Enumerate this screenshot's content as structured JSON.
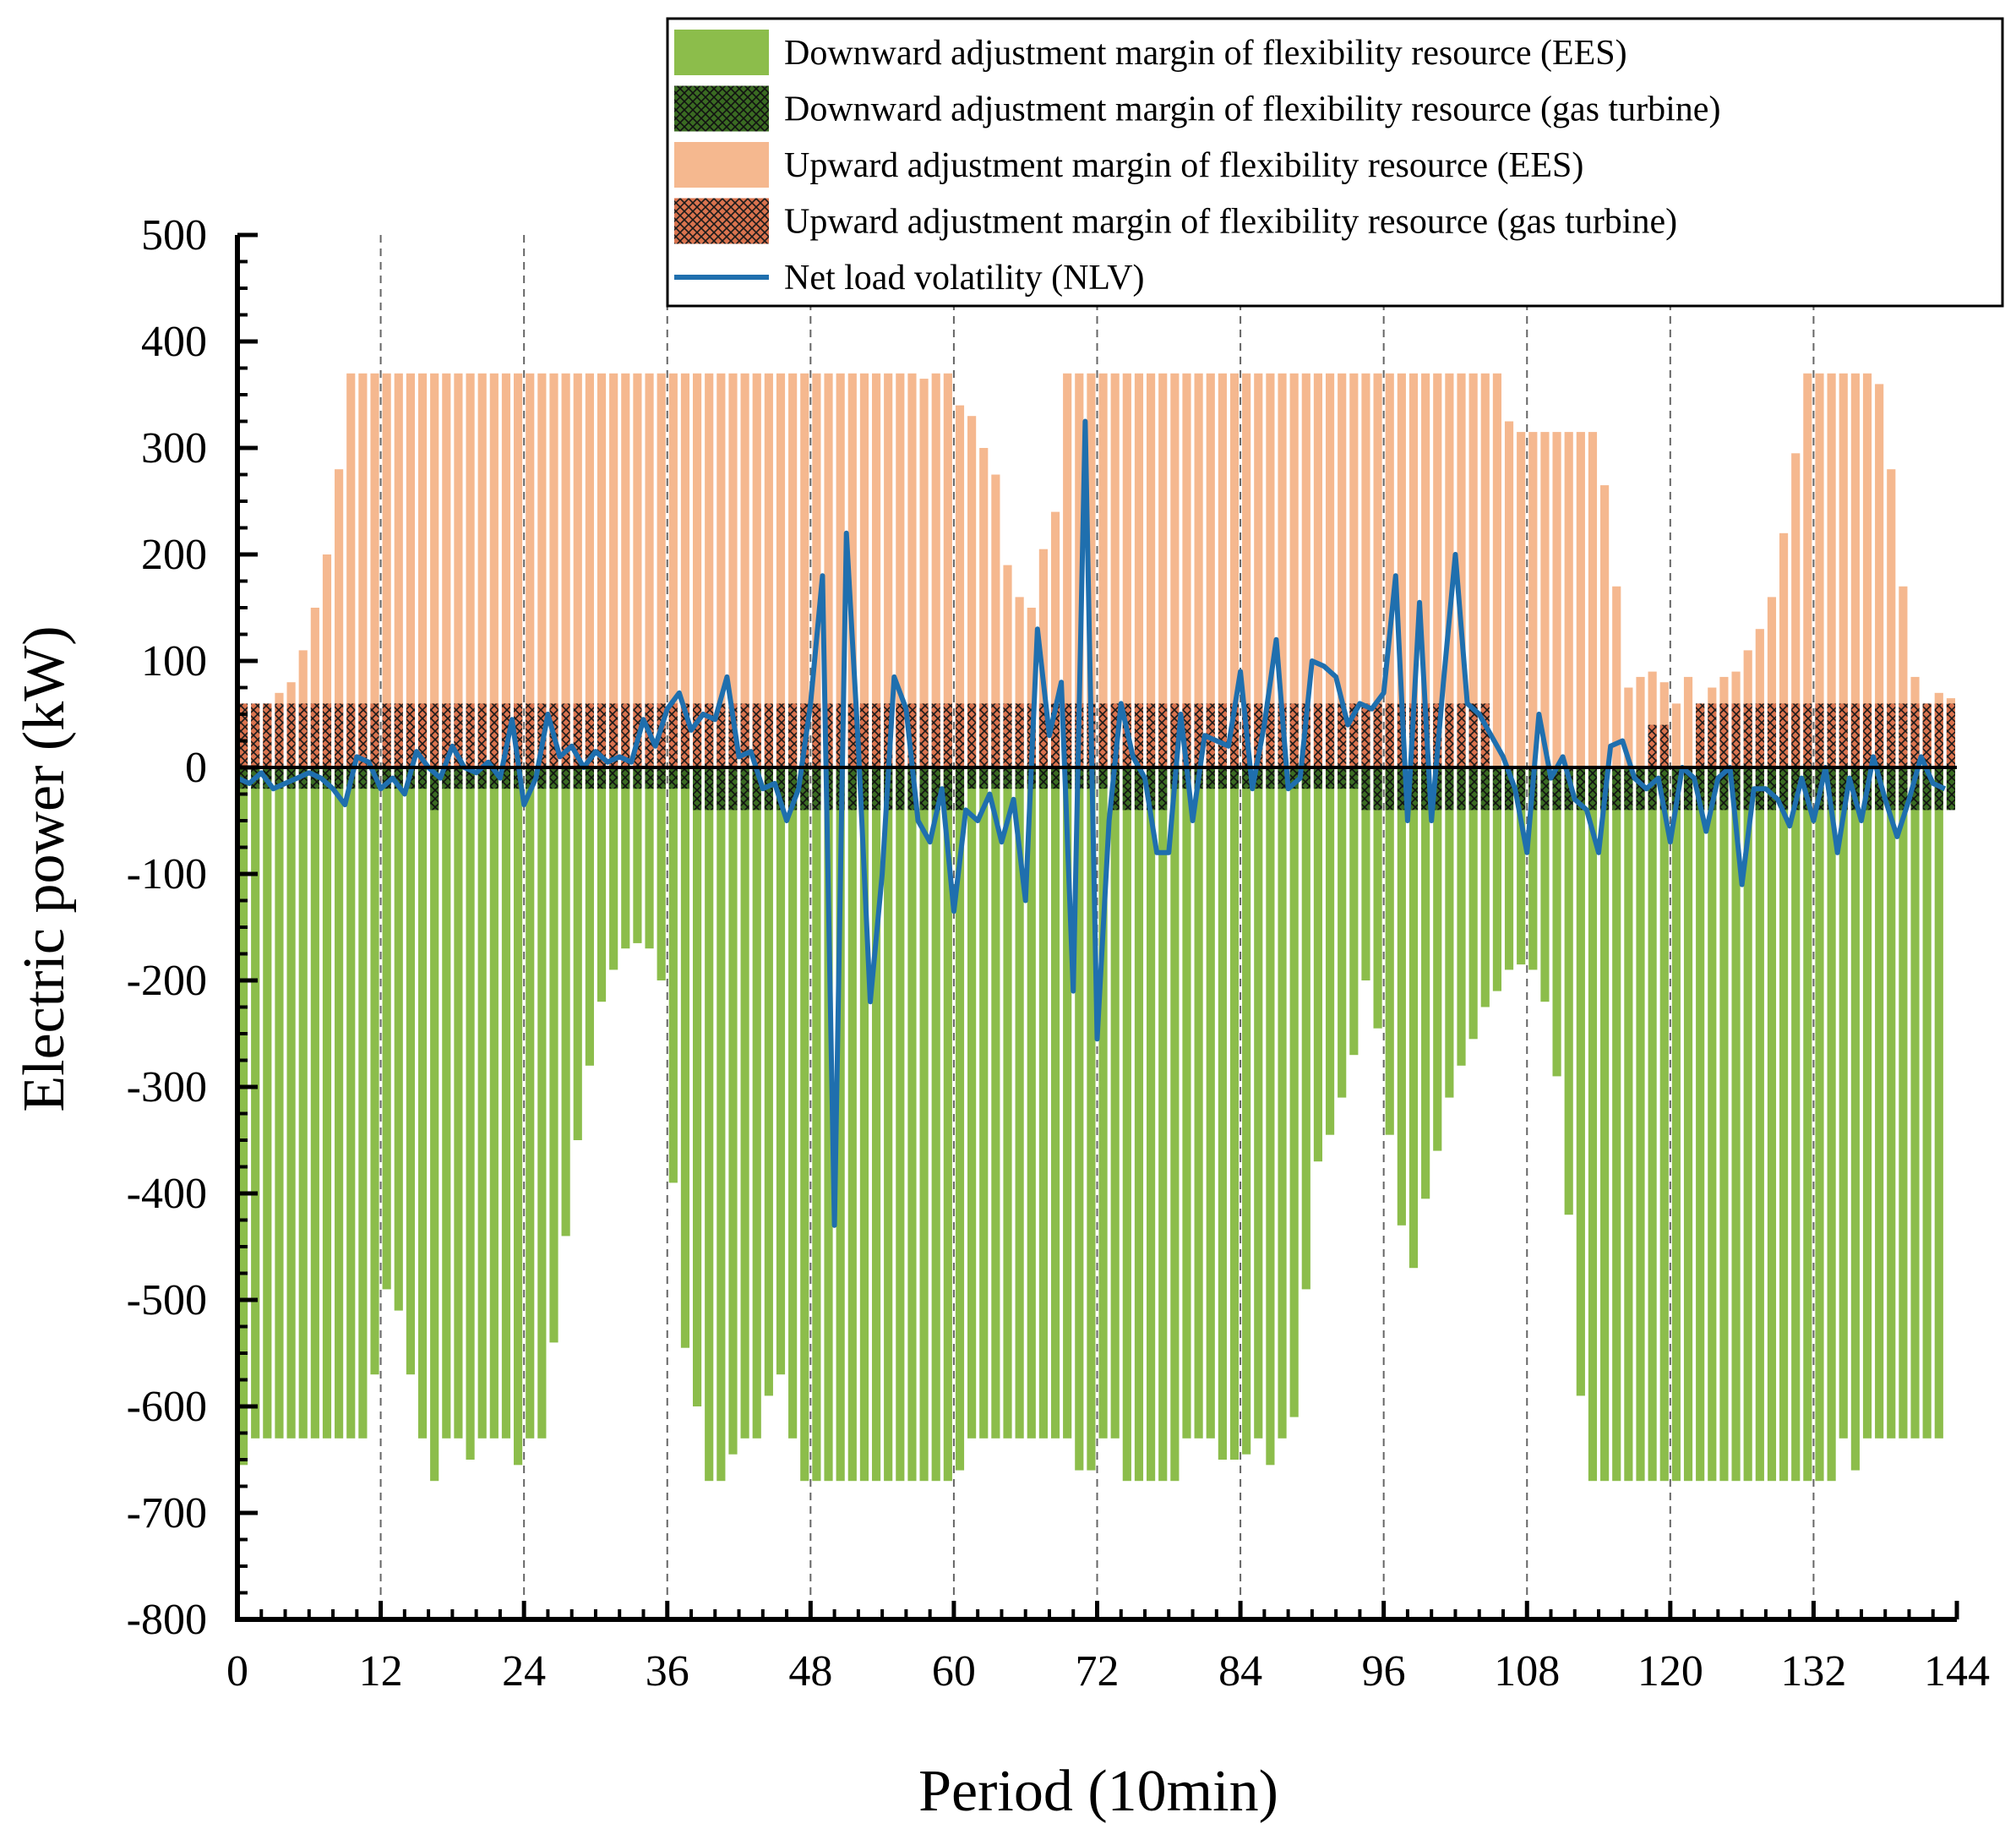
{
  "chart_data": {
    "type": "bar",
    "xlabel": "Period (10min)",
    "ylabel": "Electric power (kW)",
    "xlim": [
      0,
      144
    ],
    "ylim": [
      -800,
      500
    ],
    "x_ticks": [
      0,
      12,
      24,
      36,
      48,
      60,
      72,
      84,
      96,
      108,
      120,
      132,
      144
    ],
    "y_ticks": [
      500,
      400,
      300,
      200,
      100,
      0,
      -100,
      -200,
      -300,
      -400,
      -500,
      -600,
      -700,
      -800
    ],
    "grid": "vertical dashed lines at major x ticks",
    "legend_position": "top-right",
    "series": [
      {
        "name": "Downward adjustment margin of flexibility resource (EES)",
        "kind": "bar",
        "color": "#8cbd4b",
        "values": [
          -655,
          -630,
          -630,
          -630,
          -630,
          -630,
          -630,
          -630,
          -630,
          -630,
          -630,
          -570,
          -490,
          -510,
          -570,
          -630,
          -670,
          -630,
          -630,
          -650,
          -630,
          -630,
          -630,
          -655,
          -630,
          -630,
          -540,
          -440,
          -350,
          -280,
          -220,
          -190,
          -170,
          -165,
          -170,
          -200,
          -390,
          -545,
          -600,
          -670,
          -670,
          -645,
          -630,
          -630,
          -590,
          -570,
          -630,
          -670,
          -670,
          -670,
          -670,
          -670,
          -670,
          -670,
          -670,
          -670,
          -670,
          -670,
          -670,
          -670,
          -660,
          -630,
          -630,
          -630,
          -630,
          -630,
          -630,
          -630,
          -630,
          -630,
          -660,
          -660,
          -630,
          -630,
          -670,
          -670,
          -670,
          -670,
          -670,
          -630,
          -630,
          -630,
          -650,
          -650,
          -645,
          -630,
          -655,
          -630,
          -610,
          -490,
          -370,
          -345,
          -310,
          -270,
          -200,
          -245,
          -345,
          -430,
          -470,
          -405,
          -360,
          -310,
          -280,
          -255,
          -225,
          -210,
          -190,
          -185,
          -190,
          -220,
          -290,
          -420,
          -590,
          -670,
          -670,
          -670,
          -670,
          -670,
          -670,
          -670,
          -670,
          -670,
          -670,
          -670,
          -670,
          -670,
          -670,
          -670,
          -670,
          -670,
          -670,
          -670,
          -670,
          -670,
          -630,
          -660,
          -630,
          -630,
          -630,
          -630,
          -630,
          -630,
          -630
        ]
      },
      {
        "name": "Downward adjustment margin of flexibility resource (gas turbine)",
        "kind": "bar",
        "color": "#3a6b22",
        "pattern": "crosshatch",
        "values": [
          -20,
          -20,
          -20,
          -20,
          -20,
          -20,
          -20,
          -20,
          -20,
          -20,
          -20,
          -20,
          -20,
          -20,
          -20,
          -20,
          -40,
          -20,
          -20,
          -20,
          -20,
          -20,
          -20,
          -20,
          -20,
          -20,
          -20,
          -20,
          -20,
          -20,
          -20,
          -20,
          -20,
          -20,
          -20,
          -20,
          -20,
          -20,
          -40,
          -40,
          -40,
          -40,
          -40,
          -40,
          -40,
          -40,
          -40,
          -40,
          -40,
          -40,
          -40,
          -40,
          -40,
          -40,
          -40,
          -40,
          -40,
          -40,
          -40,
          -40,
          -40,
          -20,
          -20,
          -20,
          -20,
          -20,
          -20,
          -20,
          -20,
          -20,
          -20,
          -20,
          -20,
          -40,
          -40,
          -40,
          -40,
          -40,
          -20,
          -20,
          -20,
          -20,
          -20,
          -20,
          -20,
          -20,
          -20,
          -20,
          -20,
          -20,
          -20,
          -20,
          -20,
          -20,
          -40,
          -40,
          -40,
          -40,
          -40,
          -40,
          -40,
          -40,
          -40,
          -40,
          -40,
          -40,
          -40,
          -40,
          -40,
          -40,
          -40,
          -40,
          -40,
          -40,
          -40,
          -40,
          -40,
          -40,
          -40,
          -40,
          -40,
          -40,
          -40,
          -40,
          -40,
          -40,
          -40,
          -40,
          -40,
          -40,
          -40,
          -40,
          -40,
          -40,
          -40,
          -40,
          -40,
          -40,
          -40,
          -40,
          -40,
          -40,
          -40,
          -40
        ]
      },
      {
        "name": "Upward adjustment margin of flexibility resource (EES)",
        "kind": "bar",
        "color": "#f5b88f",
        "values": [
          40,
          55,
          60,
          70,
          80,
          110,
          150,
          200,
          280,
          370,
          370,
          370,
          370,
          370,
          370,
          370,
          370,
          370,
          370,
          370,
          370,
          370,
          370,
          370,
          370,
          370,
          370,
          370,
          370,
          370,
          370,
          370,
          370,
          370,
          370,
          370,
          370,
          370,
          370,
          370,
          370,
          370,
          370,
          370,
          370,
          370,
          370,
          370,
          370,
          370,
          370,
          370,
          370,
          370,
          370,
          370,
          370,
          365,
          370,
          370,
          340,
          330,
          300,
          275,
          190,
          160,
          150,
          205,
          240,
          370,
          370,
          370,
          370,
          370,
          370,
          370,
          370,
          370,
          370,
          370,
          370,
          370,
          370,
          370,
          370,
          370,
          370,
          370,
          370,
          370,
          370,
          370,
          370,
          370,
          370,
          370,
          370,
          370,
          370,
          370,
          370,
          370,
          370,
          370,
          370,
          370,
          325,
          315,
          315,
          315,
          315,
          315,
          315,
          315,
          265,
          170,
          75,
          85,
          90,
          80,
          60,
          85,
          60,
          75,
          85,
          90,
          110,
          130,
          160,
          220,
          295,
          370,
          370,
          370,
          370,
          370,
          370,
          360,
          280,
          170,
          85,
          60,
          70,
          65
        ]
      },
      {
        "name": "Upward adjustment margin of flexibility resource (gas turbine)",
        "kind": "bar",
        "color": "#d9734e",
        "pattern": "crosshatch",
        "values": [
          60,
          60,
          60,
          60,
          60,
          60,
          60,
          60,
          60,
          60,
          60,
          60,
          60,
          60,
          60,
          60,
          60,
          60,
          60,
          60,
          60,
          60,
          60,
          60,
          60,
          60,
          60,
          60,
          60,
          60,
          60,
          60,
          60,
          60,
          60,
          60,
          60,
          60,
          60,
          60,
          60,
          60,
          60,
          60,
          60,
          60,
          60,
          60,
          60,
          60,
          60,
          60,
          60,
          60,
          60,
          60,
          60,
          60,
          60,
          60,
          60,
          60,
          60,
          60,
          60,
          60,
          60,
          60,
          60,
          60,
          60,
          60,
          60,
          60,
          60,
          60,
          60,
          60,
          60,
          60,
          60,
          60,
          60,
          60,
          60,
          60,
          60,
          60,
          60,
          60,
          60,
          60,
          60,
          60,
          60,
          60,
          60,
          60,
          60,
          60,
          60,
          60,
          60,
          60,
          60,
          0,
          0,
          0,
          0,
          0,
          0,
          0,
          0,
          0,
          0,
          0,
          0,
          0,
          40,
          40,
          0,
          0,
          60,
          60,
          60,
          60,
          60,
          60,
          60,
          60,
          60,
          60,
          60,
          60,
          60,
          60,
          60,
          60,
          60,
          60,
          60,
          60,
          60,
          60
        ]
      },
      {
        "name": "Net load volatility (NLV)",
        "kind": "line",
        "color": "#1f6fae",
        "values": [
          -10,
          -15,
          -5,
          -20,
          -15,
          -10,
          -5,
          -10,
          -20,
          -35,
          10,
          5,
          -20,
          -10,
          -25,
          15,
          0,
          -10,
          20,
          0,
          -5,
          5,
          -10,
          45,
          -35,
          -10,
          50,
          10,
          20,
          0,
          15,
          5,
          10,
          5,
          45,
          20,
          55,
          70,
          35,
          50,
          45,
          85,
          10,
          15,
          -20,
          -15,
          -50,
          -20,
          60,
          180,
          -430,
          220,
          20,
          -220,
          -100,
          85,
          55,
          -50,
          -70,
          -20,
          -135,
          -40,
          -50,
          -25,
          -70,
          -30,
          -125,
          130,
          30,
          80,
          -210,
          325,
          -255,
          -50,
          60,
          10,
          -10,
          -80,
          -80,
          50,
          -50,
          30,
          25,
          20,
          90,
          -20,
          40,
          120,
          -20,
          -10,
          100,
          95,
          85,
          40,
          60,
          55,
          70,
          180,
          -50,
          155,
          -50,
          80,
          200,
          60,
          50,
          30,
          10,
          -20,
          -80,
          50,
          -10,
          10,
          -30,
          -40,
          -80,
          20,
          25,
          -10,
          -20,
          -10,
          -70,
          0,
          -10,
          -60,
          -10,
          0,
          -110,
          -20,
          -20,
          -30,
          -55,
          -10,
          -50,
          0,
          -80,
          -10,
          -50,
          10,
          -30,
          -65,
          -30,
          10,
          -15,
          -20
        ]
      }
    ]
  }
}
